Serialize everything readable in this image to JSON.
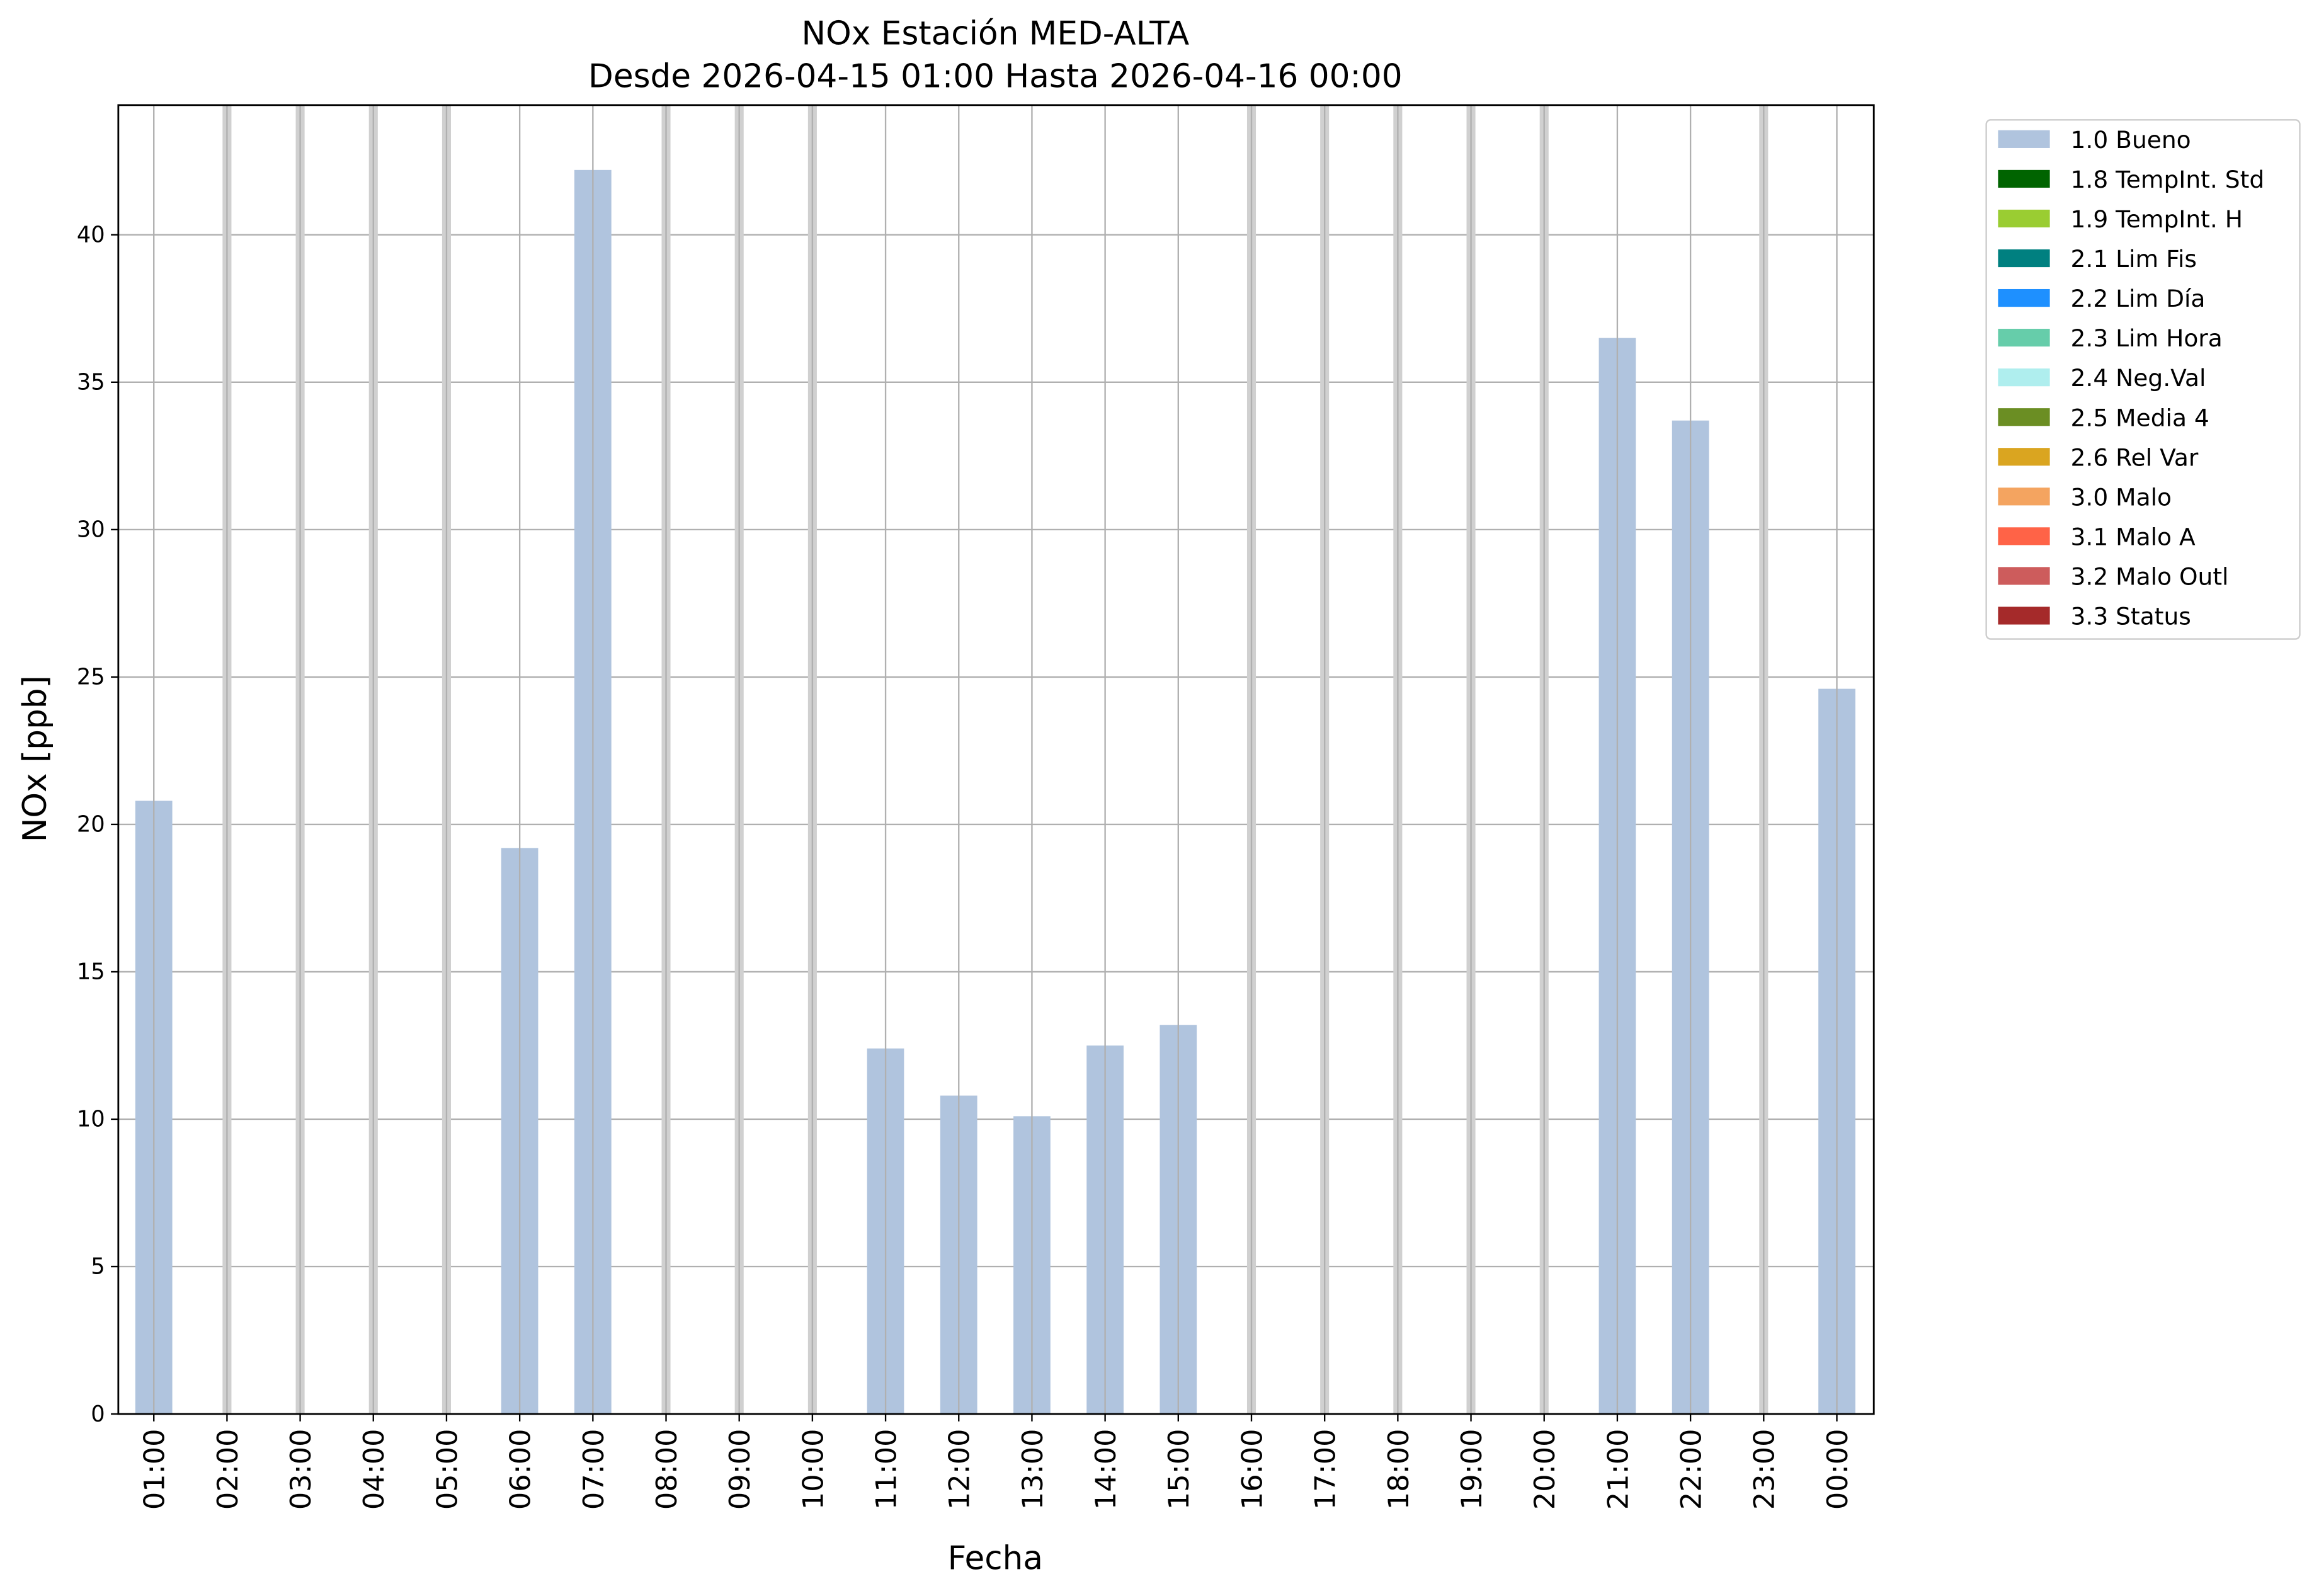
{
  "chart_data": {
    "type": "bar",
    "title": "NOx Estación MED-ALTA",
    "subtitle": "Desde 2026-04-15 01:00 Hasta 2026-04-16 00:00",
    "x_label": "Fecha",
    "y_label": "NOx [ppb]",
    "categories": [
      "01:00",
      "02:00",
      "03:00",
      "04:00",
      "05:00",
      "06:00",
      "07:00",
      "08:00",
      "09:00",
      "10:00",
      "11:00",
      "12:00",
      "13:00",
      "14:00",
      "15:00",
      "16:00",
      "17:00",
      "18:00",
      "19:00",
      "20:00",
      "21:00",
      "22:00",
      "23:00",
      "00:00"
    ],
    "series": [
      {
        "name": "1.0 Bueno",
        "color": "#b0c4de",
        "values": [
          20.8,
          null,
          null,
          null,
          null,
          19.2,
          42.2,
          null,
          null,
          null,
          12.4,
          10.8,
          10.1,
          12.5,
          13.2,
          null,
          null,
          null,
          null,
          null,
          36.5,
          33.7,
          null,
          24.6
        ]
      },
      {
        "name": "1.8 TempInt. Std",
        "color": "#006400",
        "values": [
          null,
          null,
          null,
          null,
          null,
          null,
          null,
          null,
          null,
          null,
          null,
          null,
          null,
          null,
          null,
          null,
          null,
          null,
          null,
          null,
          null,
          null,
          null,
          null
        ]
      },
      {
        "name": "1.9 TempInt. H",
        "color": "#9acd32",
        "values": [
          null,
          null,
          null,
          null,
          null,
          null,
          null,
          null,
          null,
          null,
          null,
          null,
          null,
          null,
          null,
          null,
          null,
          null,
          null,
          null,
          null,
          null,
          null,
          null
        ]
      },
      {
        "name": "2.1 Lim Fis",
        "color": "#008080",
        "values": [
          null,
          null,
          null,
          null,
          null,
          null,
          null,
          null,
          null,
          null,
          null,
          null,
          null,
          null,
          null,
          null,
          null,
          null,
          null,
          null,
          null,
          null,
          null,
          null
        ]
      },
      {
        "name": "2.2 Lim Día",
        "color": "#1e90ff",
        "values": [
          null,
          null,
          null,
          null,
          null,
          null,
          null,
          null,
          null,
          null,
          null,
          null,
          null,
          null,
          null,
          null,
          null,
          null,
          null,
          null,
          null,
          null,
          null,
          null
        ]
      },
      {
        "name": "2.3 Lim Hora",
        "color": "#66cdaa",
        "values": [
          null,
          null,
          null,
          null,
          null,
          null,
          null,
          null,
          null,
          null,
          null,
          null,
          null,
          null,
          null,
          null,
          null,
          null,
          null,
          null,
          null,
          null,
          null,
          null
        ]
      },
      {
        "name": "2.4 Neg.Val",
        "color": "#afeeee",
        "values": [
          null,
          null,
          null,
          null,
          null,
          null,
          null,
          null,
          null,
          null,
          null,
          null,
          null,
          null,
          null,
          null,
          null,
          null,
          null,
          null,
          null,
          null,
          null,
          null
        ]
      },
      {
        "name": "2.5 Media 4",
        "color": "#6b8e23",
        "values": [
          null,
          null,
          null,
          null,
          null,
          null,
          null,
          null,
          null,
          null,
          null,
          null,
          null,
          null,
          null,
          null,
          null,
          null,
          null,
          null,
          null,
          null,
          null,
          null
        ]
      },
      {
        "name": "2.6 Rel Var",
        "color": "#daa520",
        "values": [
          null,
          null,
          null,
          null,
          null,
          null,
          null,
          null,
          null,
          null,
          null,
          null,
          null,
          null,
          null,
          null,
          null,
          null,
          null,
          null,
          null,
          null,
          null,
          null
        ]
      },
      {
        "name": "3.0 Malo",
        "color": "#f4a460",
        "values": [
          null,
          null,
          null,
          null,
          null,
          null,
          null,
          null,
          null,
          null,
          null,
          null,
          null,
          null,
          null,
          null,
          null,
          null,
          null,
          null,
          null,
          null,
          null,
          null
        ]
      },
      {
        "name": "3.1 Malo A",
        "color": "#ff6347",
        "values": [
          null,
          null,
          null,
          null,
          null,
          null,
          null,
          null,
          null,
          null,
          null,
          null,
          null,
          null,
          null,
          null,
          null,
          null,
          null,
          null,
          null,
          null,
          null,
          null
        ]
      },
      {
        "name": "3.2 Malo Outl",
        "color": "#cd5c5c",
        "values": [
          null,
          null,
          null,
          null,
          null,
          null,
          null,
          null,
          null,
          null,
          null,
          null,
          null,
          null,
          null,
          null,
          null,
          null,
          null,
          null,
          null,
          null,
          null,
          null
        ]
      },
      {
        "name": "3.3 Status",
        "color": "#a52a2a",
        "values": [
          null,
          null,
          null,
          null,
          null,
          null,
          null,
          null,
          null,
          null,
          null,
          null,
          null,
          null,
          null,
          null,
          null,
          null,
          null,
          null,
          null,
          null,
          null,
          null
        ]
      }
    ],
    "ylim": [
      0,
      44.4
    ],
    "yticks": [
      0,
      5,
      10,
      15,
      20,
      25,
      30,
      35,
      40
    ],
    "grid": true
  }
}
